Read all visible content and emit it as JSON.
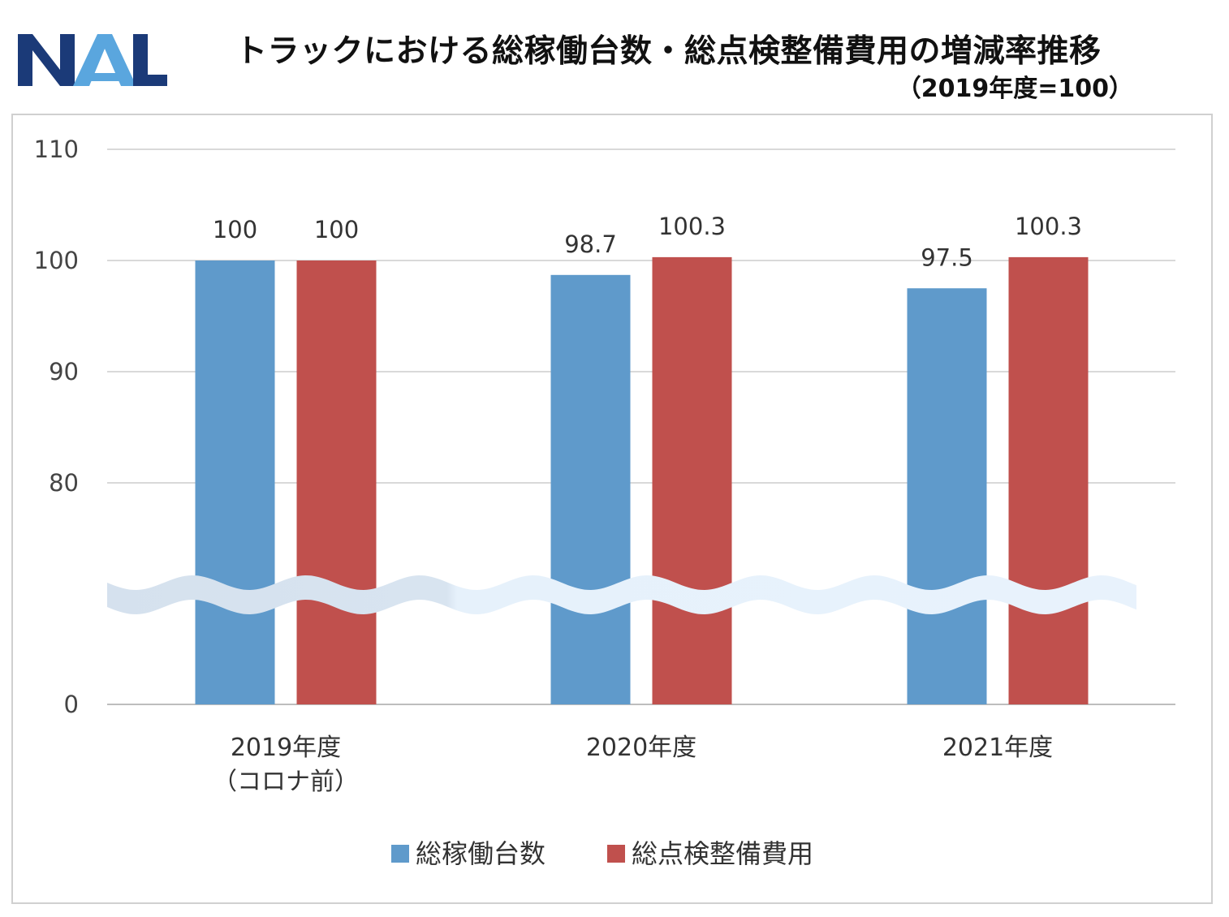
{
  "logo": {
    "text": "NAL",
    "colors": {
      "dark": "#1b3a78",
      "light": "#5aa6de"
    }
  },
  "header": {
    "title": "トラックにおける総稼働台数・総点検整備費用の増減率推移",
    "subtitle": "（2019年度=100）"
  },
  "chart_data": {
    "type": "bar",
    "title": "トラックにおける総稼働台数・総点検整備費用の増減率推移",
    "subtitle": "（2019年度=100）",
    "categories": [
      "2019年度\n（コロナ前）",
      "2020年度",
      "2021年度"
    ],
    "series": [
      {
        "name": "総稼働台数",
        "color": "#5f9acb",
        "values": [
          100,
          98.7,
          97.5
        ],
        "labels": [
          "100",
          "98.7",
          "97.5"
        ]
      },
      {
        "name": "総点検整備費用",
        "color": "#c0504d",
        "values": [
          100,
          100.3,
          100.3
        ],
        "labels": [
          "100",
          "100.3",
          "100.3"
        ]
      }
    ],
    "yticks": [
      "110",
      "100",
      "90",
      "80",
      "0"
    ],
    "ylim_upper": [
      70,
      110
    ],
    "axis_break": "between 0 and 80",
    "grid": true,
    "legend": "bottom",
    "xlabel": "",
    "ylabel": ""
  }
}
